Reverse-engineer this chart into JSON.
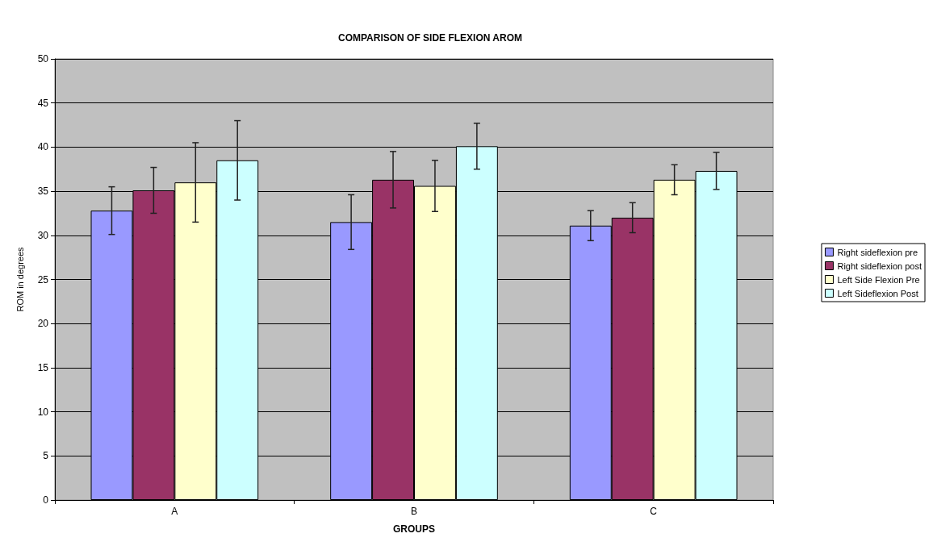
{
  "chart_data": {
    "type": "bar",
    "title": "COMPARISON OF SIDE FLEXION AROM",
    "xlabel": "GROUPS",
    "ylabel": "ROM in degrees",
    "categories": [
      "A",
      "B",
      "C"
    ],
    "series": [
      {
        "name": "Right sideflexion pre",
        "color": "#9999ff",
        "values": [
          32.8,
          31.5,
          31.1
        ],
        "errors": [
          2.7,
          3.1,
          1.7
        ]
      },
      {
        "name": "Right sideflexion post",
        "color": "#993366",
        "values": [
          35.1,
          36.3,
          32.0
        ],
        "errors": [
          2.6,
          3.2,
          1.7
        ]
      },
      {
        "name": "Left Side Flexion Pre",
        "color": "#ffffcc",
        "values": [
          36.0,
          35.6,
          36.3
        ],
        "errors": [
          4.5,
          2.9,
          1.7
        ]
      },
      {
        "name": "Left Sideflexion Post",
        "color": "#ccffff",
        "values": [
          38.5,
          40.1,
          37.3
        ],
        "errors": [
          4.5,
          2.6,
          2.1
        ]
      }
    ],
    "ylim": [
      0,
      50
    ],
    "yticks": [
      0,
      5,
      10,
      15,
      20,
      25,
      30,
      35,
      40,
      45,
      50
    ],
    "grid": "y",
    "legend": "right"
  }
}
